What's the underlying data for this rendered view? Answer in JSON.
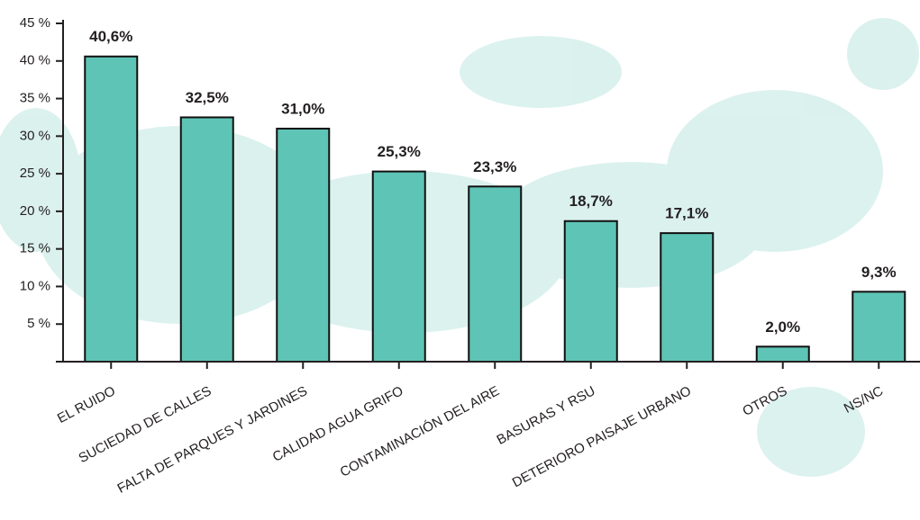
{
  "chart_data": {
    "type": "bar",
    "categories": [
      "EL RUIDO",
      "SUCIEDAD DE CALLES",
      "FALTA DE PARQUES Y JARDINES",
      "CALIDAD AGUA GRIFO",
      "CONTAMINACIÓN DEL AIRE",
      "BASURAS Y RSU",
      "DETERIORO PAISAJE URBANO",
      "OTROS",
      "NS/NC"
    ],
    "values": [
      40.6,
      32.5,
      31.0,
      25.3,
      23.3,
      18.7,
      17.1,
      2.0,
      9.3
    ],
    "value_labels": [
      "40,6%",
      "32,5%",
      "31,0%",
      "25,3%",
      "23,3%",
      "18,7%",
      "17,1%",
      "2,0%",
      "9,3%"
    ],
    "color": "#5ec4b5",
    "ylim": [
      0,
      45
    ],
    "yticks": [
      {
        "value": 5,
        "label": "5 %"
      },
      {
        "value": 10,
        "label": "10 %"
      },
      {
        "value": 15,
        "label": "15 %"
      },
      {
        "value": 20,
        "label": "20 %"
      },
      {
        "value": 25,
        "label": "25 %"
      },
      {
        "value": 30,
        "label": "30 %"
      },
      {
        "value": 35,
        "label": "35 %"
      },
      {
        "value": 40,
        "label": "40 %"
      },
      {
        "value": 45,
        "label": "45 %"
      }
    ],
    "grid": false
  }
}
